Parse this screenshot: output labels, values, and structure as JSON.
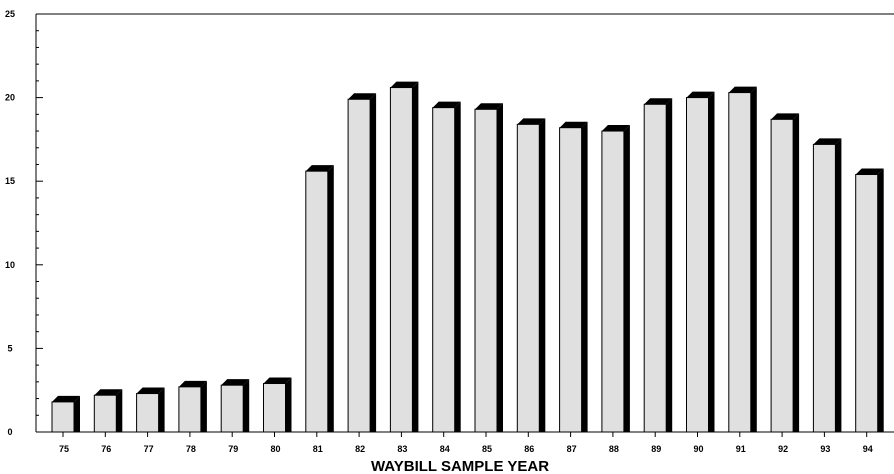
{
  "chart_data": {
    "type": "bar",
    "title": "",
    "xlabel": "WAYBILL SAMPLE YEAR",
    "ylabel": "",
    "ylim": [
      0,
      25
    ],
    "yticks": [
      0,
      5,
      10,
      15,
      20,
      25
    ],
    "categories": [
      "75",
      "76",
      "77",
      "78",
      "79",
      "80",
      "81",
      "82",
      "83",
      "84",
      "85",
      "86",
      "87",
      "88",
      "89",
      "90",
      "91",
      "92",
      "93",
      "94"
    ],
    "values": [
      1.8,
      2.2,
      2.3,
      2.7,
      2.8,
      2.9,
      15.6,
      19.9,
      20.6,
      19.4,
      19.3,
      18.4,
      18.2,
      18.0,
      19.6,
      20.0,
      20.3,
      18.7,
      17.2,
      15.4
    ],
    "grid": false,
    "legend": "none",
    "bar_fill": "#e0e0e0",
    "bar_shadow": "#000000"
  }
}
